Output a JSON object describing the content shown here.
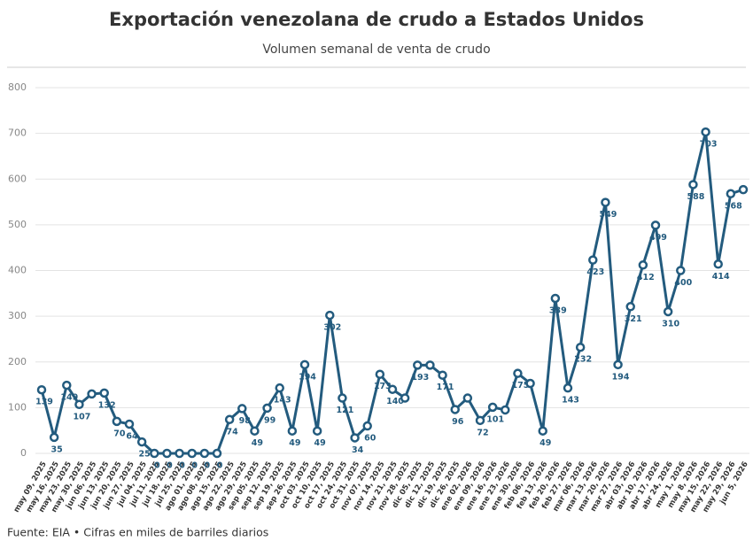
{
  "chart_data": {
    "type": "line",
    "title": "Exportación venezolana de crudo a Estados Unidos",
    "subtitle": "Volumen semanal de venta de crudo",
    "source": "Fuente: EIA • Cifras en miles de barriles diarios",
    "categories": [
      "may 09, 2025",
      "may 16, 2025",
      "may 23, 2025",
      "may 30, 2025",
      "jun 06, 2025",
      "jun 13, 2025",
      "jun 20, 2025",
      "jun 27, 2025",
      "jul 04, 2025",
      "jul 11, 2025",
      "jul 18, 2025",
      "jul 25, 2025",
      "ago 01, 2025",
      "ago 08, 2025",
      "ago 15, 2025",
      "ago 22, 2025",
      "ago 29, 2025",
      "sep 05, 2025",
      "sep 12, 2025",
      "sep 19, 2025",
      "sep 26, 2025",
      "oct 03, 2025",
      "oct 10, 2025",
      "oct 17, 2025",
      "oct 24, 2025",
      "oct 31, 2025",
      "nov 07, 2025",
      "nov 14, 2025",
      "nov 21, 2025",
      "nov 28, 2025",
      "dic 05, 2025",
      "dic 12, 2025",
      "dic 19, 2025",
      "dic 26, 2025",
      "ene 02, 2026",
      "ene 09, 2026",
      "ene 16, 2026",
      "ene 23, 2026",
      "ene 30, 2026",
      "feb 06, 2026",
      "feb 13, 2026",
      "feb 20, 2026",
      "feb 27, 2026",
      "mar 06, 2026",
      "mar 13, 2026",
      "mar 20, 2026",
      "mar 27, 2026",
      "abr 03, 2026",
      "abr 10, 2026",
      "abr 17, 2026",
      "abr 24, 2026",
      "may 1, 2026",
      "may 8, 2026",
      "may 15, 2026",
      "may 22, 2026",
      "may 29, 2026",
      "jun 5, 2026"
    ],
    "values": [
      139,
      35,
      149,
      107,
      130,
      132,
      70,
      64,
      25,
      0,
      0,
      0,
      0,
      0,
      0,
      74,
      98,
      49,
      99,
      143,
      49,
      194,
      49,
      302,
      121,
      34,
      60,
      173,
      140,
      121,
      193,
      193,
      171,
      96,
      121,
      72,
      101,
      95,
      175,
      153,
      49,
      339,
      143,
      232,
      423,
      549,
      194,
      321,
      412,
      499,
      310,
      400,
      588,
      703,
      414,
      568,
      577
    ],
    "value_labels": [
      "139",
      "35",
      "149",
      "107",
      null,
      "132",
      "70",
      "64",
      "25",
      "0",
      "0",
      "0",
      "0",
      "0",
      "0",
      "74",
      "98",
      "49",
      "99",
      "143",
      "49",
      "194",
      "49",
      "302",
      "121",
      "34",
      "60",
      "173",
      "140",
      null,
      "193",
      null,
      "171",
      "96",
      null,
      "72",
      "101",
      null,
      "175",
      null,
      "49",
      "339",
      "143",
      "232",
      "423",
      "549",
      "194",
      "321",
      "412",
      "499",
      "310",
      "400",
      "588",
      "703",
      "414",
      "568",
      null
    ],
    "color": "#235b7e",
    "ylim": [
      0,
      800
    ],
    "yticks": [
      0,
      100,
      200,
      300,
      400,
      500,
      600,
      700,
      800
    ],
    "grid": true
  }
}
